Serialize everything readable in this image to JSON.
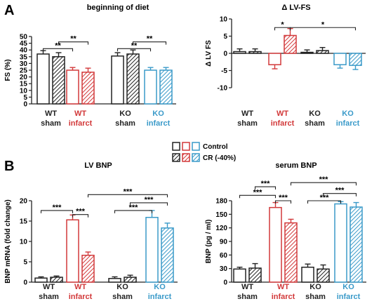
{
  "figure": {
    "panel_labels": [
      "A",
      "B"
    ],
    "legend": {
      "control": "Control",
      "cr": "CR (-40%)"
    }
  },
  "colors": {
    "wt": "#222222",
    "wt_infarct": "#d2393a",
    "ko": "#222222",
    "ko_infarct": "#3a9ac9"
  },
  "chart_data": [
    {
      "id": "fs",
      "type": "bar",
      "title": "beginning of diet",
      "ylabel": "FS (%)",
      "ylim": [
        0,
        50
      ],
      "yticks": [
        0,
        5,
        10,
        15,
        20,
        25,
        30,
        35,
        40,
        45,
        50
      ],
      "groups": [
        {
          "line1": "WT",
          "line2": "sham",
          "color": "#222222"
        },
        {
          "line1": "WT",
          "line2": "infarct",
          "color": "#d2393a"
        },
        {
          "line1": "KO",
          "line2": "sham",
          "color": "#222222"
        },
        {
          "line1": "KO",
          "line2": "infarct",
          "color": "#3a9ac9"
        }
      ],
      "series": [
        {
          "name": "Control",
          "values": [
            37,
            25,
            35.5,
            25
          ],
          "errors": [
            2.5,
            2,
            2.5,
            2
          ]
        },
        {
          "name": "CR (-40%)",
          "values": [
            35,
            23.5,
            37,
            25
          ],
          "errors": [
            3,
            3,
            3,
            2
          ]
        }
      ],
      "significance": [
        {
          "from": [
            0,
            0
          ],
          "to": [
            1,
            0
          ],
          "label": "**",
          "y": 41
        },
        {
          "from": [
            0,
            1
          ],
          "to": [
            1,
            1
          ],
          "label": "**",
          "y": 46
        },
        {
          "from": [
            2,
            0
          ],
          "to": [
            3,
            0
          ],
          "label": "**",
          "y": 41
        },
        {
          "from": [
            2,
            1
          ],
          "to": [
            3,
            1
          ],
          "label": "**",
          "y": 46
        }
      ]
    },
    {
      "id": "dfs",
      "type": "bar",
      "title": "Δ LV-FS",
      "ylabel": "Δ LV FS",
      "ylim": [
        -10,
        10
      ],
      "yticks": [
        -10,
        -5,
        0,
        5,
        10
      ],
      "zero_axis": true,
      "groups": [
        {
          "line1": "WT",
          "line2": "sham",
          "color": "#222222"
        },
        {
          "line1": "WT",
          "line2": "infarct",
          "color": "#d2393a"
        },
        {
          "line1": "KO",
          "line2": "sham",
          "color": "#222222"
        },
        {
          "line1": "KO",
          "line2": "infarct",
          "color": "#3a9ac9"
        }
      ],
      "series": [
        {
          "name": "Control",
          "values": [
            0.5,
            -3.3,
            0.3,
            -3.3
          ],
          "errors": [
            0.8,
            1.2,
            0.7,
            1.0
          ]
        },
        {
          "name": "CR (-40%)",
          "values": [
            0.5,
            5.2,
            0.8,
            -3.5
          ],
          "errors": [
            0.8,
            2.0,
            0.9,
            1.2
          ]
        }
      ],
      "significance": [
        {
          "from": [
            1,
            0
          ],
          "to": [
            1,
            1
          ],
          "label": "*",
          "y": 7.5
        },
        {
          "from": [
            1,
            1
          ],
          "to": [
            3,
            1
          ],
          "label": "*",
          "y": 7.5
        }
      ]
    },
    {
      "id": "bnp",
      "type": "bar",
      "title": "LV BNP",
      "ylabel": "BNP mRNA (fold change)",
      "ylim": [
        0,
        20
      ],
      "yticks": [
        0,
        5,
        10,
        15,
        20
      ],
      "groups": [
        {
          "line1": "WT",
          "line2": "sham",
          "color": "#222222"
        },
        {
          "line1": "WT",
          "line2": "infarct",
          "color": "#d2393a"
        },
        {
          "line1": "KO",
          "line2": "sham",
          "color": "#222222"
        },
        {
          "line1": "KO",
          "line2": "infarct",
          "color": "#3a9ac9"
        }
      ],
      "series": [
        {
          "name": "Control",
          "values": [
            1.0,
            15.3,
            0.9,
            15.9
          ],
          "errors": [
            0.3,
            1.2,
            0.4,
            1.7
          ]
        },
        {
          "name": "CR (-40%)",
          "values": [
            1.2,
            6.6,
            1.2,
            13.3
          ],
          "errors": [
            0.3,
            0.8,
            0.5,
            1.2
          ]
        }
      ],
      "significance": [
        {
          "from": [
            0,
            0
          ],
          "to": [
            1,
            0
          ],
          "label": "***",
          "y": 17.6
        },
        {
          "from": [
            1,
            0
          ],
          "to": [
            1,
            1
          ],
          "label": "***",
          "y": 16.6
        },
        {
          "from": [
            2,
            0
          ],
          "to": [
            3,
            0
          ],
          "label": "***",
          "y": 17.6
        },
        {
          "from": [
            1,
            1
          ],
          "to": [
            3,
            1
          ],
          "label": "***",
          "y": 21.5
        },
        {
          "from": [
            2,
            1
          ],
          "to": [
            3,
            1
          ],
          "label": "***",
          "y": 19.5
        }
      ]
    },
    {
      "id": "serum",
      "type": "bar",
      "title": "serum BNP",
      "ylabel": "BNP (pg / ml)",
      "ylim": [
        0,
        180
      ],
      "yticks": [
        0,
        30,
        60,
        90,
        120,
        150,
        180
      ],
      "groups": [
        {
          "line1": "WT",
          "line2": "sham",
          "color": "#222222"
        },
        {
          "line1": "WT",
          "line2": "infarct",
          "color": "#d2393a"
        },
        {
          "line1": "KO",
          "line2": "sham",
          "color": "#222222"
        },
        {
          "line1": "KO",
          "line2": "infarct",
          "color": "#3a9ac9"
        }
      ],
      "series": [
        {
          "name": "Control",
          "values": [
            29,
            165,
            33,
            173
          ],
          "errors": [
            4,
            11,
            7,
            5
          ]
        },
        {
          "name": "CR (-40%)",
          "values": [
            31,
            131,
            29,
            166
          ],
          "errors": [
            10,
            8,
            9,
            10
          ]
        }
      ],
      "significance": [
        {
          "from": [
            0,
            0
          ],
          "to": [
            1,
            0
          ],
          "label": "***",
          "y": 192
        },
        {
          "from": [
            0,
            1
          ],
          "to": [
            1,
            0
          ],
          "label": "***",
          "y": 211
        },
        {
          "from": [
            1,
            0
          ],
          "to": [
            1,
            1
          ],
          "label": "***",
          "y": 180
        },
        {
          "from": [
            1,
            1
          ],
          "to": [
            3,
            1
          ],
          "label": "***",
          "y": 220
        },
        {
          "from": [
            2,
            0
          ],
          "to": [
            3,
            0
          ],
          "label": "***",
          "y": 180
        },
        {
          "from": [
            2,
            1
          ],
          "to": [
            3,
            1
          ],
          "label": "***",
          "y": 196
        }
      ]
    }
  ]
}
